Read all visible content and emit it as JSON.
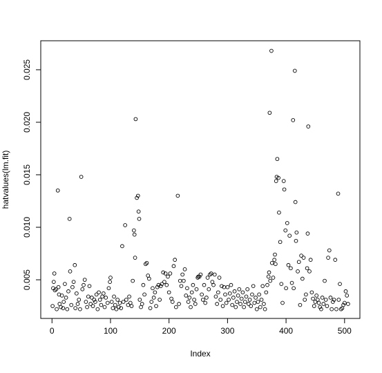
{
  "chart_data": {
    "type": "scatter",
    "xlabel": "Index",
    "ylabel": "hatvalues(lm.fit)",
    "xlim": [
      -19.2,
      526.2
    ],
    "ylim": [
      0.00132,
      0.02776
    ],
    "xticks": [
      0,
      100,
      200,
      300,
      400,
      500
    ],
    "yticks": [
      0.005,
      {
        "value": 0.01,
        "label": "0.010"
      },
      0.015,
      {
        "value": 0.02,
        "label": "0.020"
      },
      0.025
    ],
    "color": "#000000",
    "x": [
      1,
      2,
      3,
      4,
      5,
      7,
      8,
      10,
      11,
      12,
      13,
      15,
      17,
      19,
      20,
      22,
      24,
      26,
      28,
      30,
      31,
      33,
      35,
      37,
      39,
      40,
      42,
      44,
      46,
      48,
      50,
      52,
      54,
      56,
      58,
      60,
      62,
      64,
      66,
      68,
      70,
      72,
      74,
      76,
      78,
      80,
      82,
      84,
      86,
      88,
      90,
      92,
      95,
      97,
      99,
      100,
      102,
      104,
      106,
      108,
      110,
      112,
      114,
      116,
      118,
      120,
      122,
      125,
      127,
      130,
      132,
      134,
      136,
      138,
      140,
      141,
      142,
      143,
      145,
      147,
      148,
      149,
      150,
      152,
      154,
      156,
      158,
      160,
      162,
      164,
      166,
      168,
      170,
      172,
      174,
      176,
      178,
      180,
      182,
      184,
      186,
      188,
      190,
      192,
      194,
      196,
      198,
      200,
      202,
      204,
      206,
      208,
      210,
      212,
      215,
      217,
      219,
      221,
      223,
      225,
      227,
      229,
      231,
      233,
      235,
      237,
      239,
      241,
      243,
      245,
      247,
      249,
      250,
      252,
      254,
      256,
      258,
      260,
      262,
      264,
      266,
      268,
      270,
      272,
      274,
      276,
      278,
      280,
      282,
      284,
      286,
      288,
      290,
      292,
      294,
      296,
      298,
      300,
      302,
      304,
      306,
      308,
      310,
      312,
      314,
      316,
      318,
      320,
      322,
      324,
      326,
      328,
      330,
      332,
      334,
      336,
      338,
      340,
      342,
      344,
      346,
      348,
      350,
      352,
      354,
      356,
      358,
      360,
      362,
      364,
      366,
      368,
      370,
      371,
      372,
      373,
      375,
      376,
      378,
      380,
      381,
      382,
      383,
      384,
      385,
      387,
      388,
      390,
      392,
      394,
      396,
      397,
      399,
      400,
      402,
      404,
      406,
      408,
      410,
      412,
      413,
      415,
      416,
      417,
      418,
      420,
      422,
      424,
      426,
      428,
      430,
      432,
      434,
      436,
      437,
      438,
      440,
      442,
      444,
      446,
      448,
      450,
      452,
      454,
      456,
      458,
      460,
      462,
      464,
      466,
      468,
      470,
      472,
      474,
      476,
      478,
      480,
      482,
      484,
      486,
      489,
      490,
      492,
      494,
      496,
      498,
      500,
      502,
      504,
      506
    ],
    "values": [
      0.0025,
      0.0042,
      0.0048,
      0.0056,
      0.004,
      0.0041,
      0.0022,
      0.0135,
      0.0043,
      0.0036,
      0.0027,
      0.0024,
      0.0035,
      0.0023,
      0.0029,
      0.0046,
      0.0033,
      0.0022,
      0.0039,
      0.0108,
      0.0058,
      0.0026,
      0.0043,
      0.0048,
      0.0064,
      0.0023,
      0.0037,
      0.0027,
      0.0031,
      0.0022,
      0.0148,
      0.0041,
      0.0045,
      0.005,
      0.0029,
      0.0024,
      0.0034,
      0.0044,
      0.0027,
      0.0033,
      0.0025,
      0.0031,
      0.0029,
      0.0036,
      0.0022,
      0.0038,
      0.0031,
      0.0026,
      0.0034,
      0.0037,
      0.0024,
      0.0033,
      0.0028,
      0.0042,
      0.0048,
      0.0052,
      0.0029,
      0.0023,
      0.0034,
      0.0026,
      0.0022,
      0.0031,
      0.0024,
      0.0028,
      0.0023,
      0.0082,
      0.0029,
      0.0102,
      0.0031,
      0.0026,
      0.0034,
      0.0028,
      0.0025,
      0.0049,
      0.0097,
      0.0093,
      0.0071,
      0.0203,
      0.0128,
      0.013,
      0.0115,
      0.0108,
      0.0031,
      0.0024,
      0.0027,
      0.0045,
      0.0036,
      0.0065,
      0.0066,
      0.0054,
      0.0051,
      0.0023,
      0.0029,
      0.0042,
      0.0033,
      0.0038,
      0.0025,
      0.0043,
      0.0045,
      0.0031,
      0.0044,
      0.0046,
      0.0057,
      0.0048,
      0.0056,
      0.0045,
      0.0053,
      0.0038,
      0.0056,
      0.0032,
      0.0029,
      0.0063,
      0.0069,
      0.0024,
      0.013,
      0.0027,
      0.0049,
      0.0044,
      0.0055,
      0.0049,
      0.006,
      0.0035,
      0.0042,
      0.0029,
      0.0033,
      0.0024,
      0.0038,
      0.0045,
      0.0031,
      0.0027,
      0.0041,
      0.0052,
      0.0053,
      0.0053,
      0.0055,
      0.0036,
      0.0031,
      0.0045,
      0.0028,
      0.0033,
      0.0052,
      0.0041,
      0.0055,
      0.0056,
      0.0048,
      0.0045,
      0.0055,
      0.0034,
      0.0027,
      0.0038,
      0.0052,
      0.0031,
      0.0044,
      0.0025,
      0.0043,
      0.0036,
      0.0028,
      0.0043,
      0.0031,
      0.0037,
      0.0045,
      0.0026,
      0.0033,
      0.0039,
      0.0024,
      0.0029,
      0.0035,
      0.0041,
      0.0027,
      0.0032,
      0.0038,
      0.0024,
      0.0029,
      0.0034,
      0.0041,
      0.0027,
      0.0031,
      0.0025,
      0.0036,
      0.0044,
      0.0028,
      0.0033,
      0.0022,
      0.0029,
      0.0036,
      0.0024,
      0.0031,
      0.0044,
      0.0027,
      0.0022,
      0.0038,
      0.0045,
      0.0053,
      0.0057,
      0.0209,
      0.0049,
      0.0268,
      0.0066,
      0.0052,
      0.0069,
      0.0074,
      0.0065,
      0.0144,
      0.0148,
      0.0165,
      0.0147,
      0.0114,
      0.0086,
      0.0046,
      0.0028,
      0.0144,
      0.0136,
      0.0097,
      0.0042,
      0.0104,
      0.0064,
      0.0092,
      0.0061,
      0.0047,
      0.0202,
      0.0042,
      0.0249,
      0.0124,
      0.0087,
      0.0095,
      0.0058,
      0.0067,
      0.0026,
      0.0073,
      0.0051,
      0.0071,
      0.0031,
      0.0036,
      0.0061,
      0.0094,
      0.0196,
      0.0058,
      0.0069,
      0.0038,
      0.0032,
      0.0025,
      0.0029,
      0.0035,
      0.0031,
      0.0028,
      0.0024,
      0.0022,
      0.0033,
      0.0027,
      0.0049,
      0.0031,
      0.0025,
      0.0071,
      0.0078,
      0.0033,
      0.0022,
      0.0029,
      0.0031,
      0.0069,
      0.0022,
      0.0132,
      0.0031,
      0.0046,
      0.0022,
      0.0023,
      0.0026,
      0.0028,
      0.0039,
      0.0035,
      0.0027
    ]
  }
}
